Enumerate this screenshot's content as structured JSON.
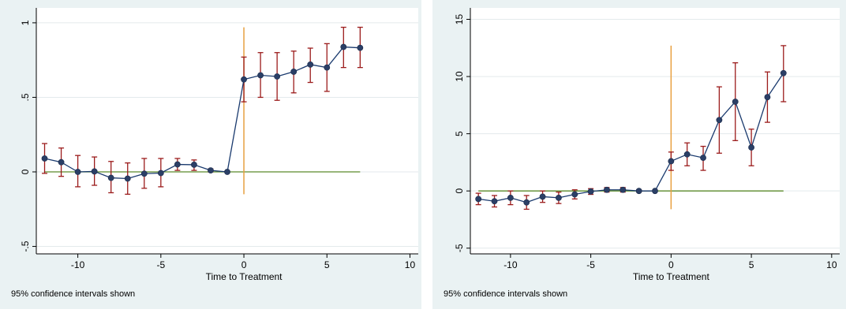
{
  "chart_data": [
    {
      "type": "line",
      "xlabel": "Time to Treatment",
      "note": "95% confidence intervals shown",
      "xlim": [
        -12.5,
        10.5
      ],
      "ylim": [
        -0.55,
        1.1
      ],
      "xticks": [
        -10,
        -5,
        0,
        5,
        10
      ],
      "xtick_labels": [
        "-10",
        "-5",
        "0",
        "5",
        "10"
      ],
      "yticks": [
        -0.5,
        0,
        0.5,
        1
      ],
      "ytick_labels": [
        "-.5",
        "0",
        ".5",
        "1"
      ],
      "grid": true,
      "treatment_line": {
        "x": 0,
        "y_low": -0.15,
        "y_high": 0.97,
        "color": "#e8a040"
      },
      "zero_line": {
        "x_start": -12,
        "x_end": 7,
        "y": 0,
        "color": "#5a8a2a"
      },
      "series_color": "#1a3a6e",
      "ci_color": "#9b1b1b",
      "x": [
        -12,
        -11,
        -10,
        -9,
        -8,
        -7,
        -6,
        -5,
        -4,
        -3,
        -2,
        -1,
        0,
        1,
        2,
        3,
        4,
        5,
        6,
        7
      ],
      "y": [
        0.09,
        0.065,
        0.0,
        0.003,
        -0.04,
        -0.045,
        -0.012,
        -0.008,
        0.05,
        0.048,
        0.01,
        0.0,
        0.62,
        0.648,
        0.64,
        0.672,
        0.72,
        0.7,
        0.838,
        0.832
      ],
      "ci_low": [
        -0.01,
        -0.03,
        -0.1,
        -0.09,
        -0.14,
        -0.15,
        -0.11,
        -0.1,
        0.01,
        0.01,
        0.0,
        0.0,
        0.47,
        0.5,
        0.48,
        0.53,
        0.6,
        0.54,
        0.7,
        0.7
      ],
      "ci_high": [
        0.19,
        0.16,
        0.11,
        0.1,
        0.07,
        0.06,
        0.09,
        0.09,
        0.09,
        0.08,
        0.02,
        0.0,
        0.77,
        0.8,
        0.8,
        0.81,
        0.83,
        0.86,
        0.97,
        0.97
      ]
    },
    {
      "type": "line",
      "xlabel": "Time to Treatment",
      "note": "95% confidence intervals shown",
      "xlim": [
        -12.5,
        10.5
      ],
      "ylim": [
        -5.5,
        16
      ],
      "xticks": [
        -10,
        -5,
        0,
        5,
        10
      ],
      "xtick_labels": [
        "-10",
        "-5",
        "0",
        "5",
        "10"
      ],
      "yticks": [
        -5,
        0,
        5,
        10,
        15
      ],
      "ytick_labels": [
        "-5",
        "0",
        "5",
        "10",
        "15"
      ],
      "grid": true,
      "treatment_line": {
        "x": 0,
        "y_low": -1.6,
        "y_high": 12.7,
        "color": "#e8a040"
      },
      "zero_line": {
        "x_start": -12,
        "x_end": 7,
        "y": 0,
        "color": "#5a8a2a"
      },
      "series_color": "#1a3a6e",
      "ci_color": "#9b1b1b",
      "x": [
        -12,
        -11,
        -10,
        -9,
        -8,
        -7,
        -6,
        -5,
        -4,
        -3,
        -2,
        -1,
        0,
        1,
        2,
        3,
        4,
        5,
        6,
        7
      ],
      "y": [
        -0.7,
        -0.9,
        -0.6,
        -1.0,
        -0.5,
        -0.6,
        -0.3,
        -0.05,
        0.1,
        0.1,
        0.0,
        0.0,
        2.6,
        3.2,
        2.9,
        6.2,
        7.8,
        3.8,
        8.2,
        10.3
      ],
      "ci_low": [
        -1.2,
        -1.4,
        -1.2,
        -1.6,
        -1.0,
        -1.1,
        -0.7,
        -0.3,
        -0.1,
        -0.1,
        -0.1,
        0.0,
        1.8,
        2.2,
        1.8,
        3.3,
        4.4,
        2.2,
        6.0,
        7.8
      ],
      "ci_high": [
        -0.2,
        -0.4,
        0.0,
        -0.4,
        0.0,
        -0.1,
        0.1,
        0.2,
        0.3,
        0.3,
        0.1,
        0.0,
        3.4,
        4.2,
        3.9,
        9.1,
        11.2,
        5.4,
        10.4,
        12.7
      ]
    }
  ]
}
